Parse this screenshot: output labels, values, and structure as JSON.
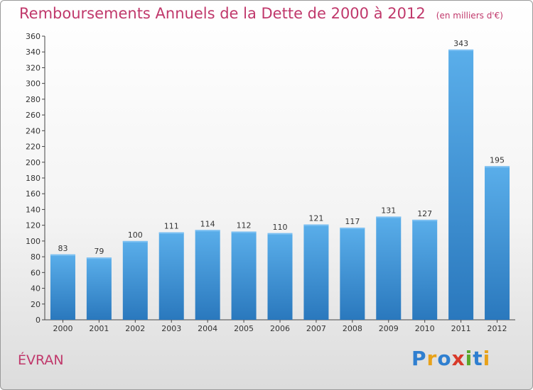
{
  "chart_data": {
    "type": "bar",
    "title": "Remboursements Annuels de la Dette de 2000 à 2012",
    "subtitle": "(en milliers d'€)",
    "categories": [
      "2000",
      "2001",
      "2002",
      "2003",
      "2004",
      "2005",
      "2006",
      "2007",
      "2008",
      "2009",
      "2010",
      "2011",
      "2012"
    ],
    "values": [
      83,
      79,
      100,
      111,
      114,
      112,
      110,
      121,
      117,
      131,
      127,
      343,
      195
    ],
    "ylim": [
      0,
      360
    ],
    "ytick_step": 20,
    "grid": false,
    "bar_color": "#4a9ee0"
  },
  "commune": "ÉVRAN",
  "logo": {
    "text": "Proxiti",
    "letters": [
      {
        "char": "P",
        "color": "#2f7fd0"
      },
      {
        "char": "r",
        "color": "#e8a21a"
      },
      {
        "char": "o",
        "color": "#2f7fd0"
      },
      {
        "char": "x",
        "color": "#d83a2a"
      },
      {
        "char": "i",
        "color": "#5aa82a"
      },
      {
        "char": "t",
        "color": "#2f7fd0"
      },
      {
        "char": "i",
        "color": "#e8a21a"
      }
    ]
  }
}
